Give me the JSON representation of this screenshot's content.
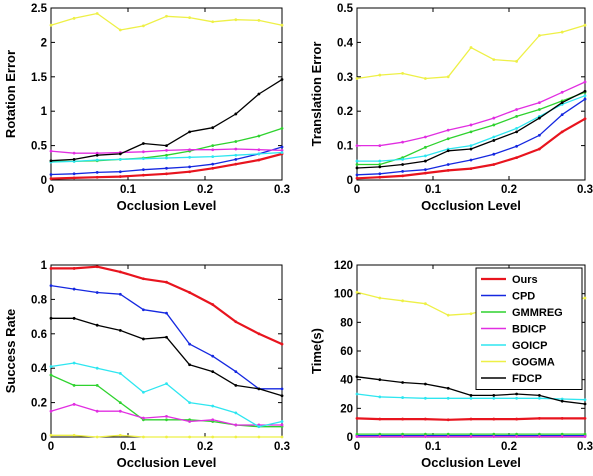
{
  "chart_data": [
    {
      "type": "line",
      "xlabel": "Occlusion Level",
      "ylabel": "Rotation Error",
      "xlim": [
        0,
        0.3
      ],
      "ylim": [
        0,
        2.5
      ],
      "xticks": [
        "0",
        "0.1",
        "0.2",
        "0.3"
      ],
      "yticks": [
        "0",
        "0.5",
        "1",
        "1.5",
        "2",
        "2.5"
      ],
      "x": [
        0,
        0.03,
        0.06,
        0.09,
        0.12,
        0.15,
        0.18,
        0.21,
        0.24,
        0.27,
        0.3
      ],
      "series": [
        {
          "name": "Ours",
          "color": "#e8141e",
          "values": [
            0.02,
            0.03,
            0.04,
            0.05,
            0.07,
            0.09,
            0.12,
            0.17,
            0.23,
            0.29,
            0.38
          ]
        },
        {
          "name": "CPD",
          "color": "#1528e0",
          "values": [
            0.08,
            0.09,
            0.11,
            0.12,
            0.15,
            0.17,
            0.19,
            0.23,
            0.3,
            0.38,
            0.48
          ]
        },
        {
          "name": "GMMREG",
          "color": "#2ed22e",
          "values": [
            0.27,
            0.27,
            0.28,
            0.3,
            0.32,
            0.36,
            0.42,
            0.5,
            0.56,
            0.64,
            0.75
          ]
        },
        {
          "name": "BDICP",
          "color": "#e12ee1",
          "values": [
            0.42,
            0.39,
            0.39,
            0.4,
            0.41,
            0.43,
            0.44,
            0.44,
            0.45,
            0.44,
            0.43
          ]
        },
        {
          "name": "GOICP",
          "color": "#2ee6f0",
          "values": [
            0.26,
            0.27,
            0.29,
            0.3,
            0.31,
            0.32,
            0.33,
            0.34,
            0.36,
            0.38,
            0.4
          ]
        },
        {
          "name": "GOGMA",
          "color": "#eef046",
          "values": [
            2.25,
            2.35,
            2.42,
            2.18,
            2.24,
            2.38,
            2.36,
            2.3,
            2.33,
            2.32,
            2.25
          ]
        },
        {
          "name": "FDCP",
          "color": "#000000",
          "values": [
            0.28,
            0.3,
            0.36,
            0.38,
            0.53,
            0.5,
            0.7,
            0.76,
            0.96,
            1.25,
            1.46
          ]
        }
      ]
    },
    {
      "type": "line",
      "xlabel": "Occlusion Level",
      "ylabel": "Translation Error",
      "xlim": [
        0,
        0.3
      ],
      "ylim": [
        0,
        0.5
      ],
      "xticks": [
        "0",
        "0.1",
        "0.2",
        "0.3"
      ],
      "yticks": [
        "0",
        "0.1",
        "0.2",
        "0.3",
        "0.4",
        "0.5"
      ],
      "x": [
        0,
        0.03,
        0.06,
        0.09,
        0.12,
        0.15,
        0.18,
        0.21,
        0.24,
        0.27,
        0.3
      ],
      "series": [
        {
          "name": "Ours",
          "color": "#e8141e",
          "values": [
            0.005,
            0.008,
            0.012,
            0.02,
            0.028,
            0.033,
            0.045,
            0.065,
            0.09,
            0.14,
            0.178
          ]
        },
        {
          "name": "CPD",
          "color": "#1528e0",
          "values": [
            0.015,
            0.018,
            0.025,
            0.03,
            0.045,
            0.058,
            0.075,
            0.098,
            0.13,
            0.19,
            0.235
          ]
        },
        {
          "name": "GMMREG",
          "color": "#2ed22e",
          "values": [
            0.045,
            0.045,
            0.065,
            0.095,
            0.12,
            0.14,
            0.16,
            0.185,
            0.205,
            0.23,
            0.255
          ]
        },
        {
          "name": "BDICP",
          "color": "#e12ee1",
          "values": [
            0.1,
            0.1,
            0.11,
            0.125,
            0.145,
            0.16,
            0.18,
            0.205,
            0.225,
            0.255,
            0.285
          ]
        },
        {
          "name": "GOICP",
          "color": "#2ee6f0",
          "values": [
            0.055,
            0.055,
            0.06,
            0.07,
            0.09,
            0.1,
            0.125,
            0.15,
            0.185,
            0.22,
            0.245
          ]
        },
        {
          "name": "GOGMA",
          "color": "#eef046",
          "values": [
            0.295,
            0.305,
            0.31,
            0.295,
            0.3,
            0.385,
            0.35,
            0.345,
            0.42,
            0.43,
            0.45
          ]
        },
        {
          "name": "FDCP",
          "color": "#000000",
          "values": [
            0.035,
            0.038,
            0.045,
            0.055,
            0.085,
            0.09,
            0.115,
            0.14,
            0.18,
            0.225,
            0.258
          ]
        }
      ]
    },
    {
      "type": "line",
      "xlabel": "Occlusion Level",
      "ylabel": "Success Rate",
      "xlim": [
        0,
        0.3
      ],
      "ylim": [
        0,
        1
      ],
      "xticks": [
        "0",
        "0.1",
        "0.2",
        "0.3"
      ],
      "yticks": [
        "0",
        "0.2",
        "0.4",
        "0.6",
        "0.8",
        "1"
      ],
      "x": [
        0,
        0.03,
        0.06,
        0.09,
        0.12,
        0.15,
        0.18,
        0.21,
        0.24,
        0.27,
        0.3
      ],
      "series": [
        {
          "name": "Ours",
          "color": "#e8141e",
          "values": [
            0.98,
            0.98,
            0.99,
            0.96,
            0.92,
            0.9,
            0.84,
            0.77,
            0.67,
            0.6,
            0.54
          ]
        },
        {
          "name": "CPD",
          "color": "#1528e0",
          "values": [
            0.88,
            0.86,
            0.84,
            0.83,
            0.74,
            0.72,
            0.54,
            0.47,
            0.38,
            0.28,
            0.28
          ]
        },
        {
          "name": "GMMREG",
          "color": "#2ed22e",
          "values": [
            0.36,
            0.3,
            0.3,
            0.2,
            0.1,
            0.1,
            0.1,
            0.09,
            0.07,
            0.06,
            0.06
          ]
        },
        {
          "name": "BDICP",
          "color": "#e12ee1",
          "values": [
            0.15,
            0.19,
            0.15,
            0.15,
            0.11,
            0.12,
            0.09,
            0.1,
            0.07,
            0.07,
            0.07
          ]
        },
        {
          "name": "GOICP",
          "color": "#2ee6f0",
          "values": [
            0.41,
            0.43,
            0.4,
            0.37,
            0.26,
            0.31,
            0.2,
            0.18,
            0.14,
            0.06,
            0.09
          ]
        },
        {
          "name": "GOGMA",
          "color": "#eef046",
          "values": [
            0.01,
            0.01,
            0.0,
            0.01,
            0.0,
            0.0,
            0.0,
            0.0,
            0.0,
            0.0,
            0.0
          ]
        },
        {
          "name": "FDCP",
          "color": "#000000",
          "values": [
            0.69,
            0.69,
            0.65,
            0.62,
            0.57,
            0.58,
            0.42,
            0.38,
            0.3,
            0.28,
            0.24
          ]
        }
      ]
    },
    {
      "type": "line",
      "xlabel": "Occlusion Level",
      "ylabel": "Time(s)",
      "xlim": [
        0,
        0.3
      ],
      "ylim": [
        0,
        120
      ],
      "xticks": [
        "0",
        "0.1",
        "0.2",
        "0.3"
      ],
      "yticks": [
        "0",
        "20",
        "40",
        "60",
        "80",
        "100",
        "120"
      ],
      "legend": "top-right",
      "x": [
        0,
        0.03,
        0.06,
        0.09,
        0.12,
        0.15,
        0.18,
        0.21,
        0.24,
        0.27,
        0.3
      ],
      "series": [
        {
          "name": "Ours",
          "color": "#e8141e",
          "values": [
            13,
            12.5,
            12.5,
            12.5,
            12,
            12.5,
            12.5,
            12.5,
            13,
            13,
            13
          ]
        },
        {
          "name": "CPD",
          "color": "#1528e0",
          "values": [
            1,
            1,
            1,
            1,
            1,
            1,
            1,
            1,
            1,
            1,
            1
          ]
        },
        {
          "name": "GMMREG",
          "color": "#2ed22e",
          "values": [
            2,
            2,
            2,
            2,
            2,
            2,
            2,
            2,
            2,
            2,
            2
          ]
        },
        {
          "name": "BDICP",
          "color": "#e12ee1",
          "values": [
            0.3,
            0.3,
            0.3,
            0.3,
            0.3,
            0.3,
            0.3,
            0.3,
            0.3,
            0.3,
            0.3
          ]
        },
        {
          "name": "GOICP",
          "color": "#2ee6f0",
          "values": [
            30,
            28,
            27.5,
            27,
            27,
            27,
            27,
            27,
            27,
            26.5,
            26
          ]
        },
        {
          "name": "GOGMA",
          "color": "#eef046",
          "values": [
            101,
            97,
            95,
            93,
            85,
            86,
            90,
            88,
            93,
            95,
            97
          ]
        },
        {
          "name": "FDCP",
          "color": "#000000",
          "values": [
            42,
            40,
            38,
            37,
            34,
            29,
            29,
            30,
            29,
            25,
            23
          ]
        }
      ]
    }
  ]
}
